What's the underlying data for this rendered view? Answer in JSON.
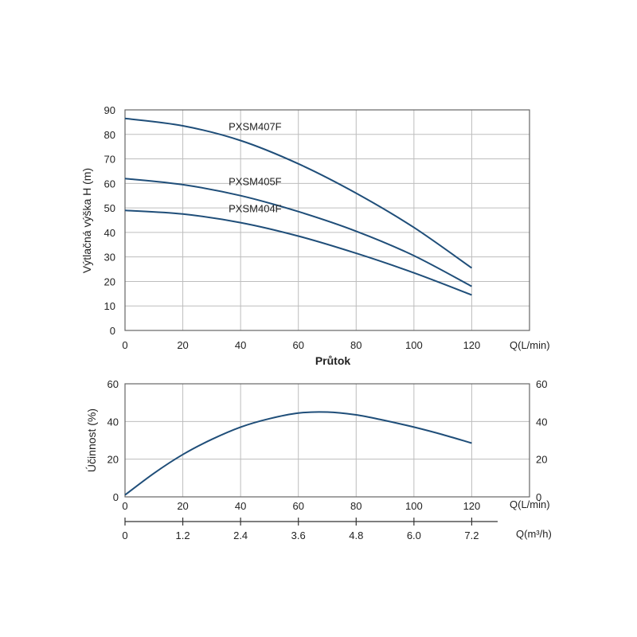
{
  "colors": {
    "curve": "#1f4e79",
    "grid": "#bdbdbd",
    "frame": "#666666"
  },
  "chart_data": [
    {
      "type": "line",
      "title": "",
      "xlabel": "Průtok",
      "x_unit_label": "Q(L/min)",
      "ylabel": "Výtlačná výška H (m)",
      "xlim": [
        0,
        140
      ],
      "ylim": [
        0,
        90
      ],
      "x_ticks": [
        0,
        20,
        40,
        60,
        80,
        100,
        120
      ],
      "y_ticks": [
        0,
        10,
        20,
        30,
        40,
        50,
        60,
        70,
        80,
        90
      ],
      "grid": true,
      "series": [
        {
          "name": "PXSM407F",
          "x": [
            0,
            20,
            40,
            60,
            80,
            100,
            120
          ],
          "y": [
            86.5,
            83.5,
            77.5,
            68,
            56,
            42,
            25.5
          ]
        },
        {
          "name": "PXSM405F",
          "x": [
            0,
            20,
            40,
            60,
            80,
            100,
            120
          ],
          "y": [
            62,
            59.5,
            55,
            48.5,
            40.5,
            30.5,
            18
          ]
        },
        {
          "name": "PXSM404F",
          "x": [
            0,
            20,
            40,
            60,
            80,
            100,
            120
          ],
          "y": [
            49,
            47.5,
            44,
            38.5,
            31.5,
            23.5,
            14.5
          ]
        }
      ]
    },
    {
      "type": "line",
      "title": "",
      "ylabel": "Účinnost (%)",
      "x_unit_label": "Q(L/min)",
      "xlim": [
        0,
        140
      ],
      "ylim": [
        0,
        60
      ],
      "x_ticks": [
        0,
        20,
        40,
        60,
        80,
        100,
        120
      ],
      "y_ticks": [
        0,
        20,
        40,
        60
      ],
      "right_y_ticks": [
        0,
        20,
        40,
        60
      ],
      "grid": true,
      "series": [
        {
          "x": [
            0,
            10,
            20,
            30,
            40,
            50,
            60,
            70,
            80,
            90,
            100,
            110,
            120
          ],
          "y": [
            1,
            12.5,
            22.5,
            30.5,
            37,
            41.5,
            44.5,
            45,
            43.5,
            40.5,
            37,
            33,
            28.5
          ]
        }
      ]
    },
    {
      "type": "axis",
      "x_unit_label": "Q(m³/h)",
      "x_ticks": [
        0,
        1.2,
        2.4,
        3.6,
        4.8,
        6.0,
        7.2
      ],
      "x_tick_labels": [
        "0",
        "1.2",
        "2.4",
        "3.6",
        "4.8",
        "6.0",
        "7.2"
      ]
    }
  ]
}
